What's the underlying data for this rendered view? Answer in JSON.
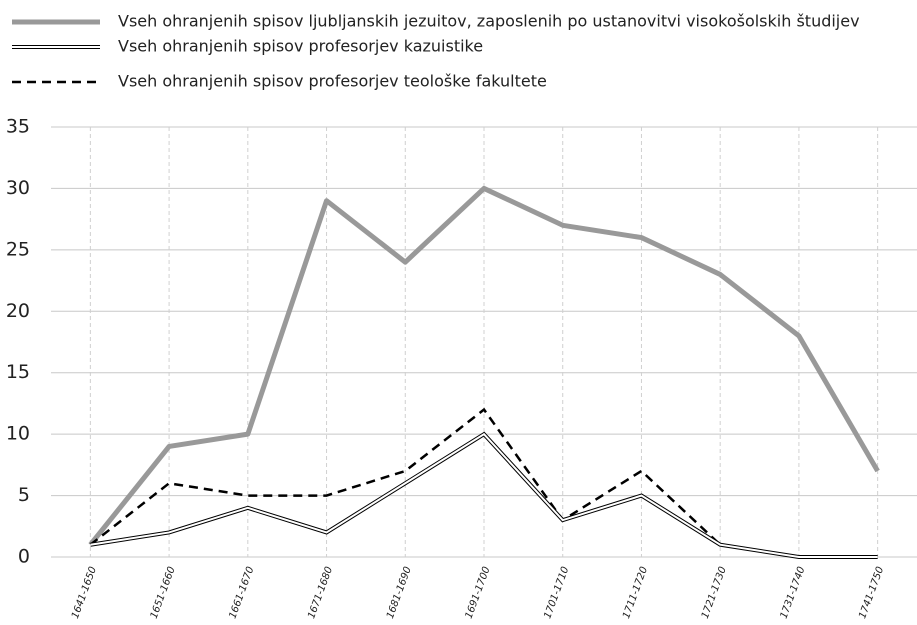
{
  "chart_data": {
    "type": "line",
    "categories": [
      "1641-1650",
      "1651-1660",
      "1661-1670",
      "1671-1680",
      "1681-1690",
      "1691-1700",
      "1701-1710",
      "1711-1720",
      "1721-1730",
      "1731-1740",
      "1741-1750"
    ],
    "series": [
      {
        "name": "Vseh ohranjenih spisov ljubljanskih jezuitov, zaposlenih po ustanovitvi visokošolskih študijev",
        "color": "#999999",
        "style": "solid",
        "values": [
          1,
          9,
          10,
          29,
          24,
          30,
          27,
          26,
          23,
          18,
          7
        ]
      },
      {
        "name": "Vseh ohranjenih spisov profesorjev kazuistike",
        "color": "#000000",
        "style": "double",
        "values": [
          1,
          2,
          4,
          2,
          6,
          10,
          3,
          5,
          1,
          0,
          0
        ]
      },
      {
        "name": "Vseh ohranjenih spisov profesorjev teološke fakultete",
        "color": "#000000",
        "style": "dashed",
        "values": [
          1,
          6,
          5,
          5,
          7,
          12,
          3,
          7,
          1,
          0,
          0
        ]
      }
    ],
    "ylim": [
      0,
      35
    ],
    "yticks": [
      0,
      5,
      10,
      15,
      20,
      25,
      30,
      35
    ],
    "grid": true
  }
}
